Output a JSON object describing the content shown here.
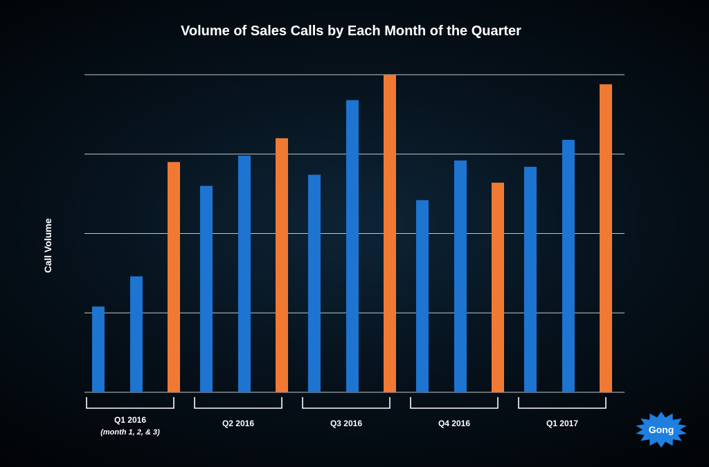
{
  "chart_data": {
    "type": "bar",
    "title": "Volume of Sales Calls by Each Month of the Quarter",
    "ylabel": "Call Volume",
    "xlabel": "",
    "ylim": [
      0,
      100
    ],
    "grid": true,
    "legend": "none",
    "colors": {
      "regular_month": "#1e74d1",
      "last_month": "#f07a33",
      "gridline": "#c8c8c8"
    },
    "groups": [
      {
        "label": "Q1 2016",
        "sublabel": "(month 1, 2, & 3)",
        "values": [
          27,
          36.5,
          72.5
        ]
      },
      {
        "label": "Q2 2016",
        "sublabel": "",
        "values": [
          65,
          74.5,
          80
        ]
      },
      {
        "label": "Q3 2016",
        "sublabel": "",
        "values": [
          68.5,
          92,
          100
        ]
      },
      {
        "label": "Q4 2016",
        "sublabel": "",
        "values": [
          60.5,
          73,
          66
        ]
      },
      {
        "label": "Q1 2017",
        "sublabel": "",
        "values": [
          71,
          79.5,
          97
        ]
      }
    ]
  },
  "logo": {
    "text": "Gong",
    "icon": "starburst-logo-icon",
    "color": "#1e7fe0"
  }
}
